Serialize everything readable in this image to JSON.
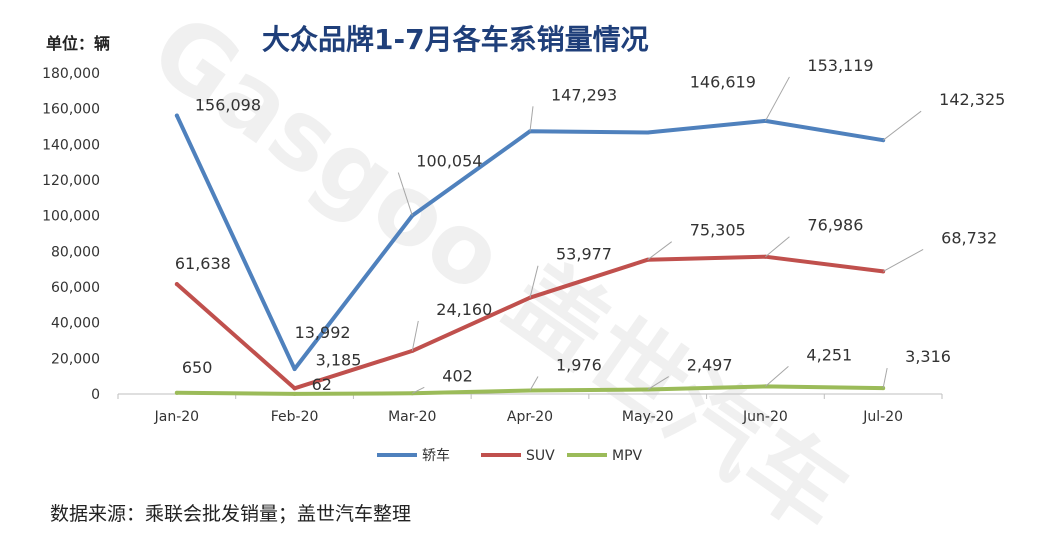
{
  "header": {
    "unit_label": "单位：辆"
  },
  "footer": {
    "source": "数据来源：乘联会批发销量；盖世汽车整理"
  },
  "watermark": {
    "text": "Gasgoo 盖世汽车"
  },
  "chart_data": {
    "type": "line",
    "title": "大众品牌1-7月各车系销量情况",
    "xlabel": "",
    "ylabel": "",
    "categories": [
      "Jan-20",
      "Feb-20",
      "Mar-20",
      "Apr-20",
      "May-20",
      "Jun-20",
      "Jul-20"
    ],
    "ylim": [
      0,
      180000
    ],
    "yticks": [
      0,
      20000,
      40000,
      60000,
      80000,
      100000,
      120000,
      140000,
      160000,
      180000
    ],
    "ytick_labels": [
      "0",
      "20,000",
      "40,000",
      "60,000",
      "80,000",
      "100,000",
      "120,000",
      "140,000",
      "160,000",
      "180,000"
    ],
    "grid": false,
    "legend_position": "bottom",
    "series": [
      {
        "name": "轿车",
        "color": "#4f81bd",
        "values": [
          156098,
          13992,
          100054,
          147293,
          146619,
          153119,
          142325
        ],
        "labels": [
          "156,098",
          "13,992",
          "100,054",
          "147,293",
          "146,619",
          "153,119",
          "142,325"
        ]
      },
      {
        "name": "SUV",
        "color": "#c0504d",
        "values": [
          61638,
          3185,
          24160,
          53977,
          75305,
          76986,
          68732
        ],
        "labels": [
          "61,638",
          "3,185",
          "24,160",
          "53,977",
          "75,305",
          "76,986",
          "68,732"
        ]
      },
      {
        "name": "MPV",
        "color": "#9bbb59",
        "values": [
          650,
          62,
          402,
          1976,
          2497,
          4251,
          3316
        ],
        "labels": [
          "650",
          "62",
          "402",
          "1,976",
          "2,497",
          "4,251",
          "3,316"
        ]
      }
    ]
  }
}
